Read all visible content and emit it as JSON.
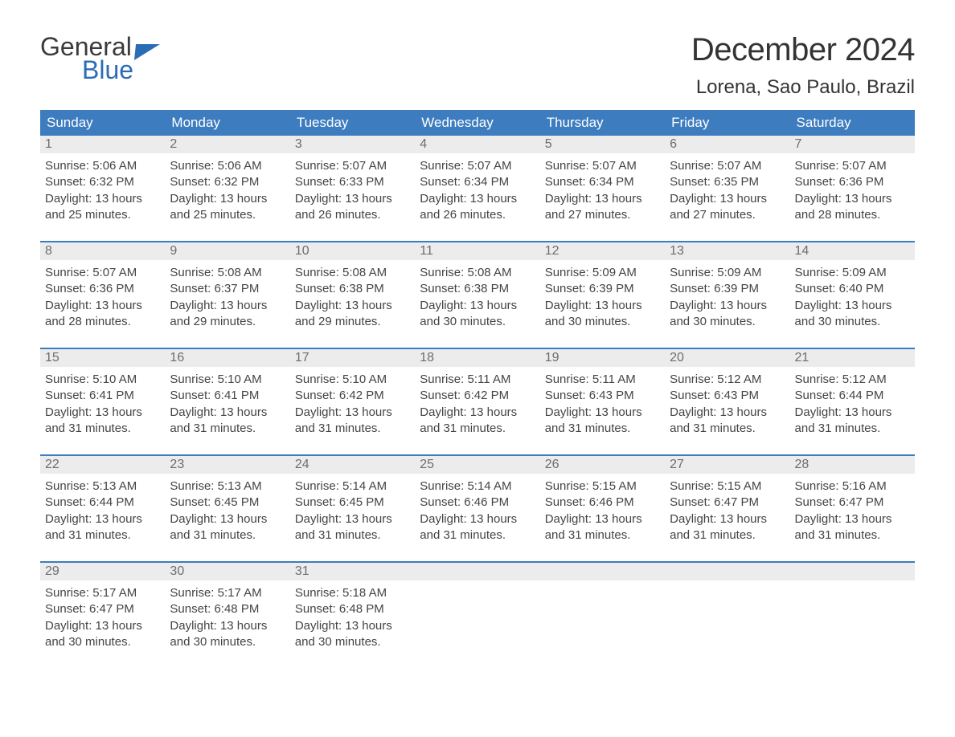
{
  "logo": {
    "word1": "General",
    "word2": "Blue"
  },
  "header": {
    "title": "December 2024",
    "location": "Lorena, Sao Paulo, Brazil"
  },
  "colors": {
    "accent": "#3d7cbf",
    "logo_blue": "#2b6db5",
    "daynum_bg": "#ececec",
    "daynum_fg": "#6d6d6d",
    "text": "#444444",
    "background": "#ffffff"
  },
  "typography": {
    "title_fontsize": 40,
    "location_fontsize": 24,
    "dow_fontsize": 17,
    "daynum_fontsize": 16,
    "body_fontsize": 15,
    "font_family": "Arial"
  },
  "layout": {
    "cols": 7,
    "rows": 5,
    "cell_width_pct": 14.28
  },
  "days_of_week": [
    "Sunday",
    "Monday",
    "Tuesday",
    "Wednesday",
    "Thursday",
    "Friday",
    "Saturday"
  ],
  "weeks": [
    [
      {
        "n": "1",
        "sunrise": "Sunrise: 5:06 AM",
        "sunset": "Sunset: 6:32 PM",
        "d1": "Daylight: 13 hours",
        "d2": "and 25 minutes."
      },
      {
        "n": "2",
        "sunrise": "Sunrise: 5:06 AM",
        "sunset": "Sunset: 6:32 PM",
        "d1": "Daylight: 13 hours",
        "d2": "and 25 minutes."
      },
      {
        "n": "3",
        "sunrise": "Sunrise: 5:07 AM",
        "sunset": "Sunset: 6:33 PM",
        "d1": "Daylight: 13 hours",
        "d2": "and 26 minutes."
      },
      {
        "n": "4",
        "sunrise": "Sunrise: 5:07 AM",
        "sunset": "Sunset: 6:34 PM",
        "d1": "Daylight: 13 hours",
        "d2": "and 26 minutes."
      },
      {
        "n": "5",
        "sunrise": "Sunrise: 5:07 AM",
        "sunset": "Sunset: 6:34 PM",
        "d1": "Daylight: 13 hours",
        "d2": "and 27 minutes."
      },
      {
        "n": "6",
        "sunrise": "Sunrise: 5:07 AM",
        "sunset": "Sunset: 6:35 PM",
        "d1": "Daylight: 13 hours",
        "d2": "and 27 minutes."
      },
      {
        "n": "7",
        "sunrise": "Sunrise: 5:07 AM",
        "sunset": "Sunset: 6:36 PM",
        "d1": "Daylight: 13 hours",
        "d2": "and 28 minutes."
      }
    ],
    [
      {
        "n": "8",
        "sunrise": "Sunrise: 5:07 AM",
        "sunset": "Sunset: 6:36 PM",
        "d1": "Daylight: 13 hours",
        "d2": "and 28 minutes."
      },
      {
        "n": "9",
        "sunrise": "Sunrise: 5:08 AM",
        "sunset": "Sunset: 6:37 PM",
        "d1": "Daylight: 13 hours",
        "d2": "and 29 minutes."
      },
      {
        "n": "10",
        "sunrise": "Sunrise: 5:08 AM",
        "sunset": "Sunset: 6:38 PM",
        "d1": "Daylight: 13 hours",
        "d2": "and 29 minutes."
      },
      {
        "n": "11",
        "sunrise": "Sunrise: 5:08 AM",
        "sunset": "Sunset: 6:38 PM",
        "d1": "Daylight: 13 hours",
        "d2": "and 30 minutes."
      },
      {
        "n": "12",
        "sunrise": "Sunrise: 5:09 AM",
        "sunset": "Sunset: 6:39 PM",
        "d1": "Daylight: 13 hours",
        "d2": "and 30 minutes."
      },
      {
        "n": "13",
        "sunrise": "Sunrise: 5:09 AM",
        "sunset": "Sunset: 6:39 PM",
        "d1": "Daylight: 13 hours",
        "d2": "and 30 minutes."
      },
      {
        "n": "14",
        "sunrise": "Sunrise: 5:09 AM",
        "sunset": "Sunset: 6:40 PM",
        "d1": "Daylight: 13 hours",
        "d2": "and 30 minutes."
      }
    ],
    [
      {
        "n": "15",
        "sunrise": "Sunrise: 5:10 AM",
        "sunset": "Sunset: 6:41 PM",
        "d1": "Daylight: 13 hours",
        "d2": "and 31 minutes."
      },
      {
        "n": "16",
        "sunrise": "Sunrise: 5:10 AM",
        "sunset": "Sunset: 6:41 PM",
        "d1": "Daylight: 13 hours",
        "d2": "and 31 minutes."
      },
      {
        "n": "17",
        "sunrise": "Sunrise: 5:10 AM",
        "sunset": "Sunset: 6:42 PM",
        "d1": "Daylight: 13 hours",
        "d2": "and 31 minutes."
      },
      {
        "n": "18",
        "sunrise": "Sunrise: 5:11 AM",
        "sunset": "Sunset: 6:42 PM",
        "d1": "Daylight: 13 hours",
        "d2": "and 31 minutes."
      },
      {
        "n": "19",
        "sunrise": "Sunrise: 5:11 AM",
        "sunset": "Sunset: 6:43 PM",
        "d1": "Daylight: 13 hours",
        "d2": "and 31 minutes."
      },
      {
        "n": "20",
        "sunrise": "Sunrise: 5:12 AM",
        "sunset": "Sunset: 6:43 PM",
        "d1": "Daylight: 13 hours",
        "d2": "and 31 minutes."
      },
      {
        "n": "21",
        "sunrise": "Sunrise: 5:12 AM",
        "sunset": "Sunset: 6:44 PM",
        "d1": "Daylight: 13 hours",
        "d2": "and 31 minutes."
      }
    ],
    [
      {
        "n": "22",
        "sunrise": "Sunrise: 5:13 AM",
        "sunset": "Sunset: 6:44 PM",
        "d1": "Daylight: 13 hours",
        "d2": "and 31 minutes."
      },
      {
        "n": "23",
        "sunrise": "Sunrise: 5:13 AM",
        "sunset": "Sunset: 6:45 PM",
        "d1": "Daylight: 13 hours",
        "d2": "and 31 minutes."
      },
      {
        "n": "24",
        "sunrise": "Sunrise: 5:14 AM",
        "sunset": "Sunset: 6:45 PM",
        "d1": "Daylight: 13 hours",
        "d2": "and 31 minutes."
      },
      {
        "n": "25",
        "sunrise": "Sunrise: 5:14 AM",
        "sunset": "Sunset: 6:46 PM",
        "d1": "Daylight: 13 hours",
        "d2": "and 31 minutes."
      },
      {
        "n": "26",
        "sunrise": "Sunrise: 5:15 AM",
        "sunset": "Sunset: 6:46 PM",
        "d1": "Daylight: 13 hours",
        "d2": "and 31 minutes."
      },
      {
        "n": "27",
        "sunrise": "Sunrise: 5:15 AM",
        "sunset": "Sunset: 6:47 PM",
        "d1": "Daylight: 13 hours",
        "d2": "and 31 minutes."
      },
      {
        "n": "28",
        "sunrise": "Sunrise: 5:16 AM",
        "sunset": "Sunset: 6:47 PM",
        "d1": "Daylight: 13 hours",
        "d2": "and 31 minutes."
      }
    ],
    [
      {
        "n": "29",
        "sunrise": "Sunrise: 5:17 AM",
        "sunset": "Sunset: 6:47 PM",
        "d1": "Daylight: 13 hours",
        "d2": "and 30 minutes."
      },
      {
        "n": "30",
        "sunrise": "Sunrise: 5:17 AM",
        "sunset": "Sunset: 6:48 PM",
        "d1": "Daylight: 13 hours",
        "d2": "and 30 minutes."
      },
      {
        "n": "31",
        "sunrise": "Sunrise: 5:18 AM",
        "sunset": "Sunset: 6:48 PM",
        "d1": "Daylight: 13 hours",
        "d2": "and 30 minutes."
      },
      null,
      null,
      null,
      null
    ]
  ]
}
